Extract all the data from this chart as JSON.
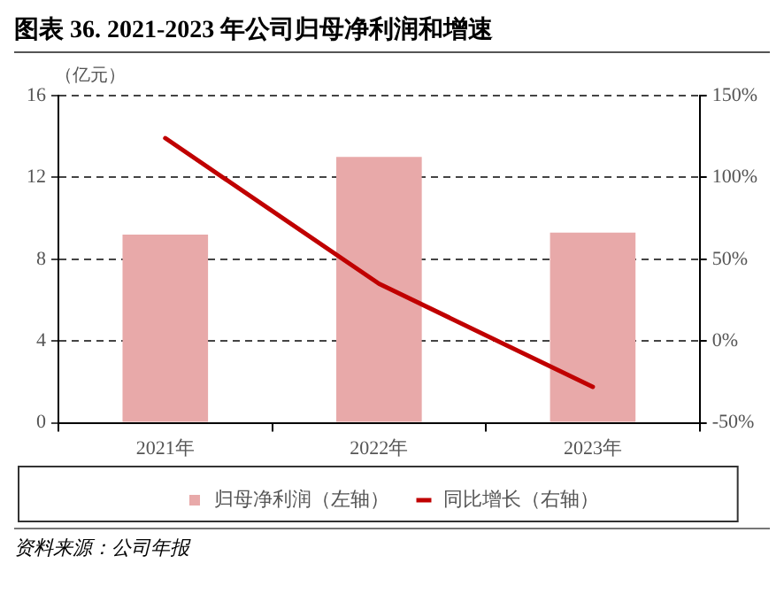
{
  "chart_data": {
    "type": "bar",
    "title": "图表 36. 2021-2023 年公司归母净利润和增速",
    "ylabel": "（亿元）",
    "categories": [
      "2021年",
      "2022年",
      "2023年"
    ],
    "series": [
      {
        "name": "归母净利润（左轴）",
        "color": "#e8a9a9",
        "values": [
          9.2,
          13.0,
          9.3
        ]
      },
      {
        "name": "同比增长（右轴）",
        "type": "line",
        "color": "#c00000",
        "axis": "y2",
        "values": [
          124,
          35,
          -28
        ]
      }
    ],
    "ylim": [
      0,
      16
    ],
    "yticks": [
      0,
      4,
      8,
      12,
      16
    ],
    "y2lim": [
      -50,
      150
    ],
    "y2ticks": [
      {
        "value": -50,
        "label": "-50%"
      },
      {
        "value": 0,
        "label": "0%"
      },
      {
        "value": 50,
        "label": "50%"
      },
      {
        "value": 100,
        "label": "100%"
      },
      {
        "value": 150,
        "label": "150%"
      }
    ],
    "grid": "y",
    "legend": "bottom",
    "marker": "none",
    "line_style": "solid",
    "annotations": [
      "资料来源：公司年报"
    ]
  }
}
